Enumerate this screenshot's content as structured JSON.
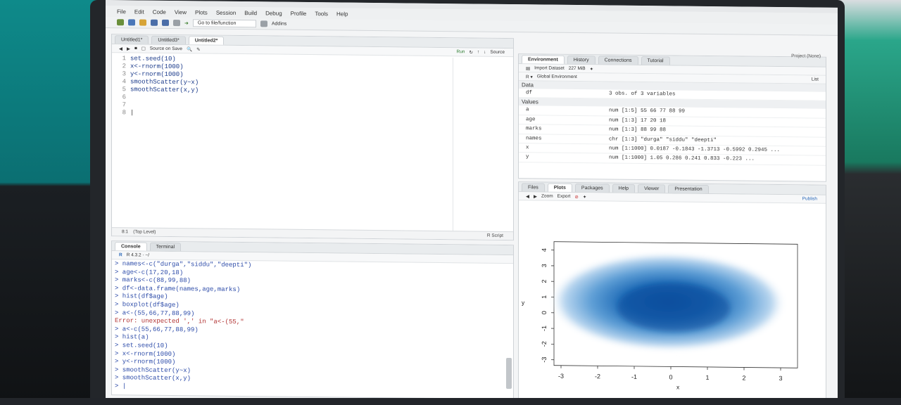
{
  "app": {
    "title": "RStudio"
  },
  "menu": [
    "File",
    "Edit",
    "Code",
    "View",
    "Plots",
    "Session",
    "Build",
    "Debug",
    "Profile",
    "Tools",
    "Help"
  ],
  "toolbar": {
    "goto": "Go to file/function",
    "addins": "Addins"
  },
  "editor": {
    "tabs": [
      "Untitled1*",
      "Untitled3*",
      "Untitled2*"
    ],
    "source_on_save": "Source on Save",
    "run": "Run",
    "source": "Source",
    "lines": [
      {
        "n": "1",
        "code": "set.seed(10)"
      },
      {
        "n": "2",
        "code": "x<-rnorm(1000)"
      },
      {
        "n": "3",
        "code": "y<-rnorm(1000)"
      },
      {
        "n": "4",
        "code": "smoothScatter(y~x)"
      },
      {
        "n": "5",
        "code": "smoothScatter(x,y)"
      },
      {
        "n": "6",
        "code": ""
      },
      {
        "n": "7",
        "code": ""
      },
      {
        "n": "8",
        "code": ""
      }
    ],
    "status_pos": "8:1",
    "status_scope": "(Top Level)",
    "status_type": "R Script"
  },
  "console": {
    "tabs": [
      "Console",
      "Terminal"
    ],
    "version": "R 4.3.2 · ~/",
    "lines": [
      "> names<-c(\"durga\",\"siddu\",\"deepti\")",
      "> age<-c(17,20,18)",
      "> marks<-c(88,99,88)",
      "> df<-data.frame(names,age,marks)",
      "> hist(df$age)",
      "> boxplot(df$age)",
      "> a<-(55,66,77,88,99)",
      "Error: unexpected ',' in \"a<-(55,\"",
      "> a<-c(55,66,77,88,99)",
      "> hist(a)",
      "> set.seed(10)",
      "> x<-rnorm(1000)",
      "> y<-rnorm(1000)",
      "> smoothScatter(y~x)",
      "> smoothScatter(x,y)",
      "> |"
    ]
  },
  "env": {
    "tabs": [
      "Environment",
      "History",
      "Connections",
      "Tutorial"
    ],
    "import": "Import Dataset",
    "memory": "227 MiB",
    "global": "Global Environment",
    "list_mode": "List",
    "project": "Project (None)",
    "data_header": "Data",
    "data": [
      {
        "name": "df",
        "value": "3 obs. of 3 variables"
      }
    ],
    "values_header": "Values",
    "values": [
      {
        "name": "a",
        "value": "num [1:5] 55 66 77 88 99"
      },
      {
        "name": "age",
        "value": "num [1:3] 17 20 18"
      },
      {
        "name": "marks",
        "value": "num [1:3] 88 99 88"
      },
      {
        "name": "names",
        "value": "chr [1:3] \"durga\" \"siddu\" \"deepti\""
      },
      {
        "name": "x",
        "value": "num [1:1000] 0.0187 -0.1843 -1.3713 -0.5992 0.2945 ..."
      },
      {
        "name": "y",
        "value": "num [1:1000] 1.05 0.286 0.241 0.833 -0.223 ..."
      }
    ]
  },
  "files": {
    "tabs": [
      "Files",
      "Plots",
      "Packages",
      "Help",
      "Viewer",
      "Presentation"
    ],
    "zoom": "Zoom",
    "export": "Export",
    "publish": "Publish"
  },
  "plot": {
    "xlabel": "x",
    "ylabel": "y",
    "xticks": [
      "-3",
      "-2",
      "-1",
      "0",
      "1",
      "2",
      "3"
    ],
    "yticks": [
      "-3",
      "-2",
      "-1",
      "0",
      "1",
      "2",
      "3",
      "4"
    ],
    "accent": "#1565a8"
  }
}
